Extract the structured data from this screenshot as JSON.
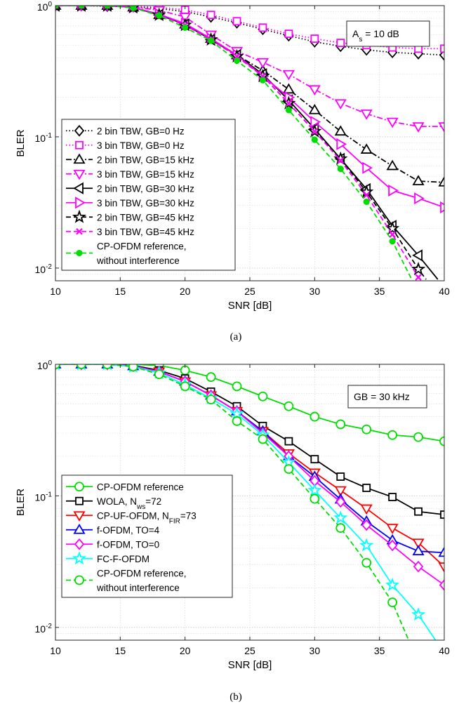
{
  "chart_data": [
    {
      "type": "line",
      "caption": "(a)",
      "xlabel": "SNR [dB]",
      "ylabel": "BLER",
      "xlim": [
        10,
        40
      ],
      "ylim": [
        0.008,
        1
      ],
      "yscale": "log",
      "grid": true,
      "x_ticks": [
        "10",
        "15",
        "20",
        "25",
        "30",
        "35",
        "40"
      ],
      "y_ticks": [
        {
          "value": 1,
          "base": "10",
          "exp": "0"
        },
        {
          "value": 0.1,
          "base": "10",
          "exp": "-1"
        },
        {
          "value": 0.01,
          "base": "10",
          "exp": "-2"
        }
      ],
      "annotation": {
        "main": "A",
        "sub": "s",
        "rest": " = 10 dB"
      },
      "legend_placement": "lower-left",
      "series": [
        {
          "name": "2 bin TBW, GB=0 Hz",
          "color": "#000000",
          "dash": "dot",
          "marker": "diamond",
          "x": [
            10,
            12,
            14,
            16,
            18,
            20,
            22,
            24,
            26,
            28,
            30,
            32,
            34,
            36,
            38,
            40
          ],
          "y": [
            1,
            1,
            0.99,
            0.98,
            0.95,
            0.9,
            0.82,
            0.74,
            0.66,
            0.59,
            0.53,
            0.49,
            0.46,
            0.44,
            0.43,
            0.42
          ]
        },
        {
          "name": "3 bin TBW, GB=0 Hz",
          "color": "#ff00ff",
          "dash": "dot",
          "marker": "square",
          "x": [
            10,
            12,
            14,
            16,
            18,
            20,
            22,
            24,
            26,
            28,
            30,
            32,
            34,
            36,
            38,
            40
          ],
          "y": [
            1,
            1,
            1,
            0.99,
            0.97,
            0.93,
            0.85,
            0.76,
            0.68,
            0.61,
            0.56,
            0.52,
            0.5,
            0.48,
            0.47,
            0.47
          ]
        },
        {
          "name": "2 bin TBW, GB=15 kHz",
          "color": "#000000",
          "dash": "dashdot",
          "marker": "triangle-up",
          "x": [
            10,
            12,
            14,
            16,
            18,
            20,
            22,
            24,
            26,
            28,
            30,
            32,
            34,
            36,
            38,
            40
          ],
          "y": [
            1,
            1,
            1,
            0.97,
            0.85,
            0.72,
            0.56,
            0.42,
            0.32,
            0.23,
            0.16,
            0.11,
            0.08,
            0.06,
            0.046,
            0.045
          ]
        },
        {
          "name": "3 bin TBW, GB=15 kHz",
          "color": "#ff00ff",
          "dash": "dashdot",
          "marker": "triangle-down",
          "x": [
            10,
            12,
            14,
            16,
            18,
            20,
            22,
            24,
            26,
            28,
            30,
            32,
            34,
            36,
            38,
            40
          ],
          "y": [
            1,
            1,
            1,
            0.98,
            0.92,
            0.82,
            0.6,
            0.45,
            0.37,
            0.3,
            0.23,
            0.18,
            0.15,
            0.13,
            0.12,
            0.12
          ]
        },
        {
          "name": "2 bin TBW, GB=30 kHz",
          "color": "#000000",
          "dash": "solid",
          "marker": "triangle-left",
          "x": [
            10,
            12,
            14,
            16,
            18,
            20,
            22,
            24,
            26,
            28,
            30,
            32,
            34,
            36,
            38,
            39.5
          ],
          "y": [
            1,
            1,
            1,
            0.97,
            0.85,
            0.72,
            0.55,
            0.42,
            0.3,
            0.19,
            0.115,
            0.068,
            0.04,
            0.021,
            0.0125,
            0.0082
          ]
        },
        {
          "name": "3 bin TBW, GB=30 kHz",
          "color": "#ff00ff",
          "dash": "solid",
          "marker": "triangle-right",
          "x": [
            10,
            12,
            14,
            16,
            18,
            20,
            22,
            24,
            26,
            28,
            30,
            32,
            34,
            36,
            38,
            40
          ],
          "y": [
            1,
            1,
            1,
            0.97,
            0.86,
            0.73,
            0.56,
            0.42,
            0.29,
            0.2,
            0.13,
            0.088,
            0.058,
            0.039,
            0.034,
            0.029
          ]
        },
        {
          "name": "2 bin TBW, GB=45 kHz",
          "color": "#000000",
          "dash": "dashed",
          "marker": "star",
          "x": [
            10,
            12,
            14,
            16,
            18,
            20,
            22,
            24,
            26,
            28,
            30,
            32,
            34,
            36,
            38,
            38.6
          ],
          "y": [
            1,
            1,
            1,
            0.97,
            0.85,
            0.71,
            0.55,
            0.41,
            0.29,
            0.18,
            0.11,
            0.068,
            0.038,
            0.02,
            0.0098,
            0.0082
          ]
        },
        {
          "name": "3 bin TBW, GB=45 kHz",
          "color": "#ff00ff",
          "dash": "dashed",
          "marker": "x",
          "x": [
            10,
            12,
            14,
            16,
            18,
            20,
            22,
            24,
            26,
            28,
            30,
            32,
            34,
            36,
            38,
            38.3
          ],
          "y": [
            1,
            1,
            1,
            0.97,
            0.85,
            0.71,
            0.55,
            0.41,
            0.29,
            0.18,
            0.11,
            0.066,
            0.036,
            0.018,
            0.0085,
            0.008
          ]
        },
        {
          "name": "CP-OFDM reference,",
          "name2": "without interference",
          "color": "#00dd00",
          "dash": "dashed",
          "marker": "circle-filled",
          "x": [
            10,
            12,
            14,
            16,
            18,
            20,
            22,
            24,
            26,
            28,
            30,
            32,
            34,
            36,
            37.6
          ],
          "y": [
            1,
            1,
            1,
            0.96,
            0.84,
            0.68,
            0.54,
            0.38,
            0.27,
            0.16,
            0.095,
            0.057,
            0.032,
            0.016,
            0.0078
          ]
        }
      ]
    },
    {
      "type": "line",
      "caption": "(b)",
      "xlabel": "SNR [dB]",
      "ylabel": "BLER",
      "xlim": [
        10,
        40
      ],
      "ylim": [
        0.008,
        1
      ],
      "yscale": "log",
      "grid": true,
      "x_ticks": [
        "10",
        "15",
        "20",
        "25",
        "30",
        "35",
        "40"
      ],
      "y_ticks": [
        {
          "value": 1,
          "base": "10",
          "exp": "0"
        },
        {
          "value": 0.1,
          "base": "10",
          "exp": "-1"
        },
        {
          "value": 0.01,
          "base": "10",
          "exp": "-2"
        }
      ],
      "annotation": {
        "main": "GB = 30 kHz",
        "sub": "",
        "rest": ""
      },
      "legend_placement": "lower-left",
      "series": [
        {
          "name": "CP-OFDM reference",
          "color": "#00dd00",
          "dash": "solid",
          "marker": "circle",
          "x": [
            10,
            12,
            14,
            16,
            18,
            20,
            22,
            24,
            26,
            28,
            30,
            32,
            34,
            36,
            38,
            40
          ],
          "y": [
            1,
            1,
            1,
            1,
            0.98,
            0.9,
            0.8,
            0.68,
            0.57,
            0.48,
            0.4,
            0.35,
            0.32,
            0.29,
            0.28,
            0.26
          ]
        },
        {
          "name": "WOLA, N",
          "sub": "ws",
          "rest": "=72",
          "color": "#000000",
          "dash": "solid",
          "marker": "square",
          "x": [
            10,
            12,
            14,
            16,
            18,
            20,
            22,
            24,
            26,
            28,
            30,
            32,
            34,
            36,
            38,
            40
          ],
          "y": [
            1,
            1,
            1,
            0.98,
            0.9,
            0.78,
            0.62,
            0.48,
            0.34,
            0.26,
            0.19,
            0.14,
            0.115,
            0.098,
            0.076,
            0.072
          ]
        },
        {
          "name": "CP-UF-OFDM, N",
          "sub": "FIR",
          "rest": "=73",
          "color": "#ff0000",
          "dash": "solid",
          "marker": "triangle-down",
          "x": [
            10,
            12,
            14,
            16,
            18,
            20,
            22,
            24,
            26,
            28,
            30,
            32,
            34,
            36,
            38,
            40
          ],
          "y": [
            1,
            1,
            1,
            0.97,
            0.88,
            0.74,
            0.58,
            0.44,
            0.31,
            0.21,
            0.15,
            0.11,
            0.08,
            0.057,
            0.044,
            0.029
          ]
        },
        {
          "name": "f-OFDM, TO=4",
          "color": "#0000ff",
          "dash": "solid",
          "marker": "triangle-up",
          "x": [
            10,
            12,
            14,
            16,
            18,
            20,
            22,
            24,
            26,
            28,
            30,
            32,
            34,
            36,
            38,
            40
          ],
          "y": [
            1,
            1,
            1,
            0.97,
            0.88,
            0.74,
            0.58,
            0.44,
            0.31,
            0.2,
            0.14,
            0.094,
            0.064,
            0.046,
            0.038,
            0.037
          ]
        },
        {
          "name": "f-OFDM, TO=0",
          "color": "#ff00ff",
          "dash": "solid",
          "marker": "diamond",
          "x": [
            10,
            12,
            14,
            16,
            18,
            20,
            22,
            24,
            26,
            28,
            30,
            32,
            34,
            36,
            38,
            40
          ],
          "y": [
            1,
            1,
            1,
            0.97,
            0.88,
            0.74,
            0.58,
            0.44,
            0.3,
            0.2,
            0.13,
            0.09,
            0.06,
            0.042,
            0.029,
            0.021
          ]
        },
        {
          "name": "FC-F-OFDM",
          "color": "#00ffff",
          "dash": "solid",
          "marker": "star",
          "x": [
            10,
            12,
            14,
            16,
            18,
            20,
            22,
            24,
            26,
            28,
            30,
            32,
            34,
            36,
            38,
            39.4
          ],
          "y": [
            1,
            1,
            1,
            0.96,
            0.86,
            0.7,
            0.55,
            0.42,
            0.29,
            0.18,
            0.11,
            0.068,
            0.042,
            0.021,
            0.0125,
            0.0078
          ]
        },
        {
          "name": "CP-OFDM reference,",
          "name2": "without interference",
          "color": "#00dd00",
          "dash": "dashed",
          "marker": "circle",
          "x": [
            10,
            12,
            14,
            16,
            18,
            20,
            22,
            24,
            26,
            28,
            30,
            32,
            34,
            36,
            37.3
          ],
          "y": [
            1,
            1,
            1,
            0.96,
            0.84,
            0.68,
            0.54,
            0.37,
            0.27,
            0.16,
            0.095,
            0.057,
            0.031,
            0.0155,
            0.0078
          ]
        }
      ]
    }
  ]
}
